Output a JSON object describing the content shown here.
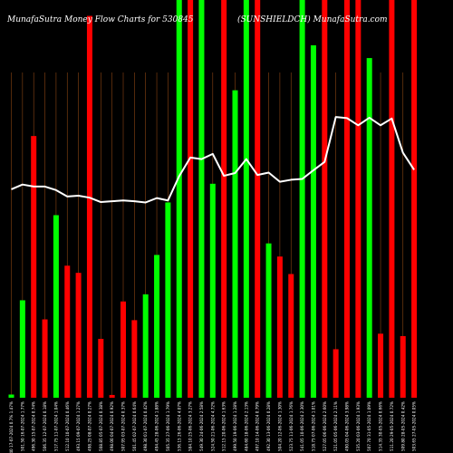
{
  "chart_data": {
    "type": "bar",
    "title_left": "MunafaSutra  Money Flow  Charts for 530845",
    "title_right": "(SUNSHIELDCH) MunafaSutra.com",
    "ylim": [
      0,
      100
    ],
    "grid": true,
    "colors": {
      "background": "#000000",
      "up": "#00ff00",
      "down": "#ff0000",
      "grid": "#8b4513",
      "line": "#ffffff",
      "text": "#ffffff"
    },
    "categories": [
      "504.40 17-07-2024 0.7% 1.47%",
      "501.50 16-07-2024 1.77%",
      "496.30 15-07-2024 0.74%",
      "506.35 12-07-2024 0.18%",
      "517.75 11-07-2024 1.04%",
      "512.10 10-07-2024 0.46%",
      "493.15 09-07-2024 1.27%",
      "498.25 08-07-2024 0.27%",
      "508.85 05-07-2024 0.38%",
      "498.00 04-07-2024 0.92%",
      "507.95 03-07-2024 0.37%",
      "501.45 02-07-2024 0.64%",
      "498.30 01-07-2024 0.42%",
      "494.45 28-06-2024 1.88%",
      "505.35 27-06-2024 1.79%",
      "536.15 26-06-2024 4.07%",
      "584.10 25-06-2024 3.27%",
      "549.30 24-06-2024 2.58%",
      "524.50 21-06-2024 4.72%",
      "512.15 20-06-2024 1.63%",
      "499.50 19-06-2024 1.28%",
      "484.60 18-06-2024 2.13%",
      "497.10 14-06-2024 0.79%",
      "492.30 13-06-2024 0.28%",
      "504.20 12-06-2024 1.30%",
      "523.75 11-06-2024 1.76%",
      "541.05 10-06-2024 2.30%",
      "518.75 07-06-2024 1.01%",
      "527.05 06-06-2024 2.60%",
      "521.05 05-06-2024 2.11%",
      "490.05 04-06-2024 3.98%",
      "535.20 03-06-2024 1.93%",
      "507.70 31-05-2024 1.09%",
      "514.35 30-05-2024 0.66%",
      "511.20 29-05-2024 0.72%",
      "509.80 28-05-2024 0.42%",
      "503.65 27-05-2024 0.05%"
    ],
    "bars": [
      {
        "dir": "up",
        "value": 0.8
      },
      {
        "dir": "up",
        "value": 24.5
      },
      {
        "dir": "down",
        "value": 65.8
      },
      {
        "dir": "down",
        "value": 19.7
      },
      {
        "dir": "up",
        "value": 45.9
      },
      {
        "dir": "down",
        "value": 33.2
      },
      {
        "dir": "down",
        "value": 31.4
      },
      {
        "dir": "down",
        "value": 96
      },
      {
        "dir": "down",
        "value": 14.8
      },
      {
        "dir": "down",
        "value": 0.7
      },
      {
        "dir": "down",
        "value": 24.2
      },
      {
        "dir": "down",
        "value": 19.5
      },
      {
        "dir": "up",
        "value": 26
      },
      {
        "dir": "up",
        "value": 35.9
      },
      {
        "dir": "up",
        "value": 49.1
      },
      {
        "dir": "up",
        "value": 100
      },
      {
        "dir": "down",
        "value": 100
      },
      {
        "dir": "up",
        "value": 100
      },
      {
        "dir": "up",
        "value": 53.8
      },
      {
        "dir": "down",
        "value": 100
      },
      {
        "dir": "up",
        "value": 77.3
      },
      {
        "dir": "up",
        "value": 100
      },
      {
        "dir": "down",
        "value": 100
      },
      {
        "dir": "up",
        "value": 38.8
      },
      {
        "dir": "down",
        "value": 35.5
      },
      {
        "dir": "down",
        "value": 31.1
      },
      {
        "dir": "up",
        "value": 100
      },
      {
        "dir": "up",
        "value": 88.6
      },
      {
        "dir": "down",
        "value": 100
      },
      {
        "dir": "down",
        "value": 12.2
      },
      {
        "dir": "down",
        "value": 100
      },
      {
        "dir": "down",
        "value": 100
      },
      {
        "dir": "up",
        "value": 85.4
      },
      {
        "dir": "down",
        "value": 16.1
      },
      {
        "dir": "down",
        "value": 100
      },
      {
        "dir": "down",
        "value": 15.5
      },
      {
        "dir": "down",
        "value": 100
      }
    ],
    "line_series": {
      "values": [
        52.4,
        53.6,
        53.1,
        53.1,
        52.2,
        50.6,
        50.8,
        50.3,
        49.2,
        49.4,
        49.6,
        49.4,
        49.1,
        50.2,
        49.6,
        55.7,
        60.4,
        60.0,
        61.3,
        55.8,
        56.5,
        60.0,
        56.0,
        56.6,
        54.3,
        54.8,
        55.0,
        57.2,
        59.3,
        70.6,
        70.3,
        68.5,
        70.4,
        68.5,
        70.2,
        61.6,
        57.3
      ]
    }
  }
}
